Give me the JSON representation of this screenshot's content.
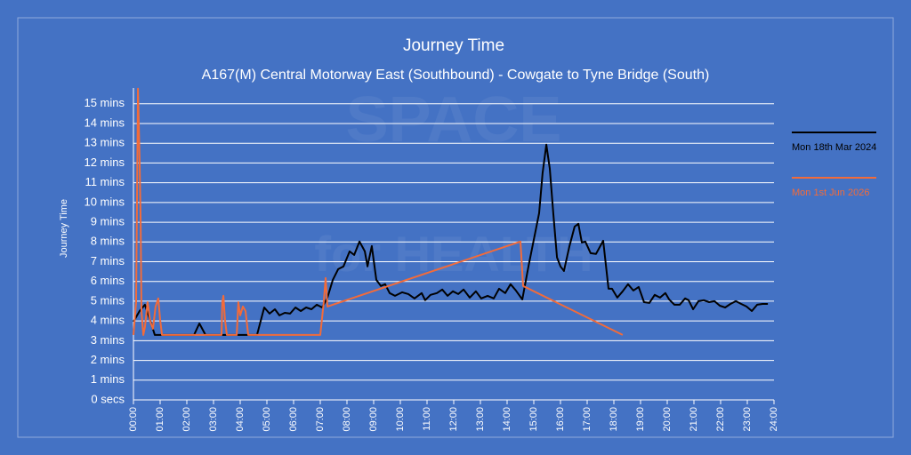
{
  "chart_data": {
    "type": "line",
    "title": "Journey Time",
    "subtitle": "A167(M) Central Motorway East (Southbound) - Cowgate to Tyne Bridge (South)",
    "y_label": "Journey Time",
    "watermark": [
      "SPACE",
      "for HEALTH"
    ],
    "ylim": [
      0,
      15.8
    ],
    "yticks": [
      {
        "value": 0,
        "label": "0 secs"
      },
      {
        "value": 1,
        "label": "1 mins"
      },
      {
        "value": 2,
        "label": "2 mins"
      },
      {
        "value": 3,
        "label": "3 mins"
      },
      {
        "value": 4,
        "label": "4 mins"
      },
      {
        "value": 5,
        "label": "5 mins"
      },
      {
        "value": 6,
        "label": "6 mins"
      },
      {
        "value": 7,
        "label": "7 mins"
      },
      {
        "value": 8,
        "label": "8 mins"
      },
      {
        "value": 9,
        "label": "9 mins"
      },
      {
        "value": 10,
        "label": "10 mins"
      },
      {
        "value": 11,
        "label": "11 mins"
      },
      {
        "value": 12,
        "label": "12 mins"
      },
      {
        "value": 13,
        "label": "13 mins"
      },
      {
        "value": 14,
        "label": "14 mins"
      },
      {
        "value": 15,
        "label": "15 mins"
      }
    ],
    "xlim": [
      0,
      24
    ],
    "xticks": [
      {
        "value": 0,
        "label": "00:00"
      },
      {
        "value": 1,
        "label": "01:00"
      },
      {
        "value": 2,
        "label": "02:00"
      },
      {
        "value": 3,
        "label": "03:00"
      },
      {
        "value": 4,
        "label": "04:00"
      },
      {
        "value": 5,
        "label": "05:00"
      },
      {
        "value": 6,
        "label": "06:00"
      },
      {
        "value": 7,
        "label": "07:00"
      },
      {
        "value": 8,
        "label": "08:00"
      },
      {
        "value": 9,
        "label": "09:00"
      },
      {
        "value": 10,
        "label": "10:00"
      },
      {
        "value": 11,
        "label": "11:00"
      },
      {
        "value": 12,
        "label": "12:00"
      },
      {
        "value": 13,
        "label": "13:00"
      },
      {
        "value": 14,
        "label": "14:00"
      },
      {
        "value": 15,
        "label": "15:00"
      },
      {
        "value": 16,
        "label": "16:00"
      },
      {
        "value": 17,
        "label": "17:00"
      },
      {
        "value": 18,
        "label": "18:00"
      },
      {
        "value": 19,
        "label": "19:00"
      },
      {
        "value": 20,
        "label": "20:00"
      },
      {
        "value": 21,
        "label": "21:00"
      },
      {
        "value": 22,
        "label": "22:00"
      },
      {
        "value": 23,
        "label": "23:00"
      },
      {
        "value": 24,
        "label": "24:00"
      }
    ],
    "grid": true,
    "legend": "right",
    "series": [
      {
        "name": "Mon 18th Mar 2024",
        "color": "#000000",
        "x": [
          0,
          0.23,
          0.43,
          0.6,
          0.8,
          2.27,
          2.47,
          2.7,
          4.63,
          4.9,
          5.1,
          5.3,
          5.47,
          5.67,
          5.87,
          6.07,
          6.27,
          6.47,
          6.67,
          6.87,
          7.07,
          7.27,
          7.47,
          7.67,
          7.87,
          8.1,
          8.27,
          8.47,
          8.67,
          8.77,
          8.93,
          9.1,
          9.27,
          9.43,
          9.6,
          9.8,
          10.07,
          10.3,
          10.53,
          10.8,
          10.93,
          11.13,
          11.37,
          11.57,
          11.77,
          11.97,
          12.17,
          12.37,
          12.6,
          12.83,
          13.03,
          13.27,
          13.5,
          13.7,
          13.93,
          14.13,
          14.33,
          14.57,
          14.8,
          15,
          15.2,
          15.33,
          15.47,
          15.6,
          15.73,
          15.87,
          16,
          16.13,
          16.33,
          16.53,
          16.67,
          16.8,
          16.93,
          17.13,
          17.33,
          17.6,
          17.8,
          17.93,
          18.13,
          18.33,
          18.53,
          18.73,
          18.93,
          19.13,
          19.33,
          19.53,
          19.73,
          19.93,
          20.07,
          20.27,
          20.47,
          20.67,
          20.8,
          20.97,
          21.17,
          21.37,
          21.57,
          21.77,
          21.97,
          22.17,
          22.37,
          22.57,
          22.77,
          22.97,
          23.17,
          23.37,
          23.57,
          23.77
        ],
        "values": [
          3.96,
          4.5,
          4.82,
          4.14,
          3.29,
          3.29,
          3.87,
          3.29,
          3.29,
          4.68,
          4.37,
          4.59,
          4.28,
          4.41,
          4.37,
          4.68,
          4.5,
          4.68,
          4.59,
          4.82,
          4.68,
          5.18,
          6.08,
          6.62,
          6.76,
          7.52,
          7.34,
          8.02,
          7.52,
          6.76,
          7.79,
          6.08,
          5.77,
          5.86,
          5.41,
          5.27,
          5.45,
          5.36,
          5.14,
          5.41,
          5.05,
          5.32,
          5.41,
          5.59,
          5.27,
          5.5,
          5.36,
          5.59,
          5.18,
          5.5,
          5.14,
          5.27,
          5.14,
          5.63,
          5.41,
          5.86,
          5.54,
          5.09,
          6.76,
          8.11,
          9.46,
          11.49,
          12.93,
          11.71,
          9.46,
          7.21,
          6.76,
          6.53,
          7.75,
          8.78,
          8.92,
          7.97,
          8.02,
          7.43,
          7.39,
          8.06,
          5.63,
          5.63,
          5.18,
          5.5,
          5.86,
          5.54,
          5.72,
          4.95,
          4.91,
          5.32,
          5.18,
          5.41,
          5.09,
          4.82,
          4.82,
          5.14,
          5.05,
          4.59,
          5.0,
          5.05,
          4.95,
          5.0,
          4.77,
          4.68,
          4.86,
          5.0,
          4.86,
          4.73,
          4.5,
          4.82,
          4.86,
          4.86
        ]
      },
      {
        "name": "Mon 1st Jun 2026",
        "color": "#f26b3a",
        "x": [
          0,
          0.1,
          0.17,
          0.23,
          0.27,
          0.3,
          0.37,
          0.43,
          0.53,
          0.63,
          0.73,
          0.83,
          0.93,
          1.0,
          1.07,
          3.3,
          3.33,
          3.37,
          3.43,
          3.5,
          3.87,
          3.93,
          4.0,
          4.1,
          4.2,
          4.3,
          7.0,
          7.13,
          7.2,
          7.27,
          14.5,
          14.6,
          18.33
        ],
        "values": [
          3.29,
          4.95,
          15.77,
          12.16,
          9.01,
          4.5,
          3.29,
          3.69,
          4.95,
          3.96,
          3.6,
          4.73,
          5.14,
          4.05,
          3.29,
          3.29,
          4.95,
          5.27,
          4.05,
          3.29,
          3.29,
          4.95,
          4.28,
          4.73,
          4.5,
          3.29,
          3.29,
          4.95,
          6.17,
          4.73,
          8.02,
          5.77,
          3.29
        ]
      }
    ]
  }
}
